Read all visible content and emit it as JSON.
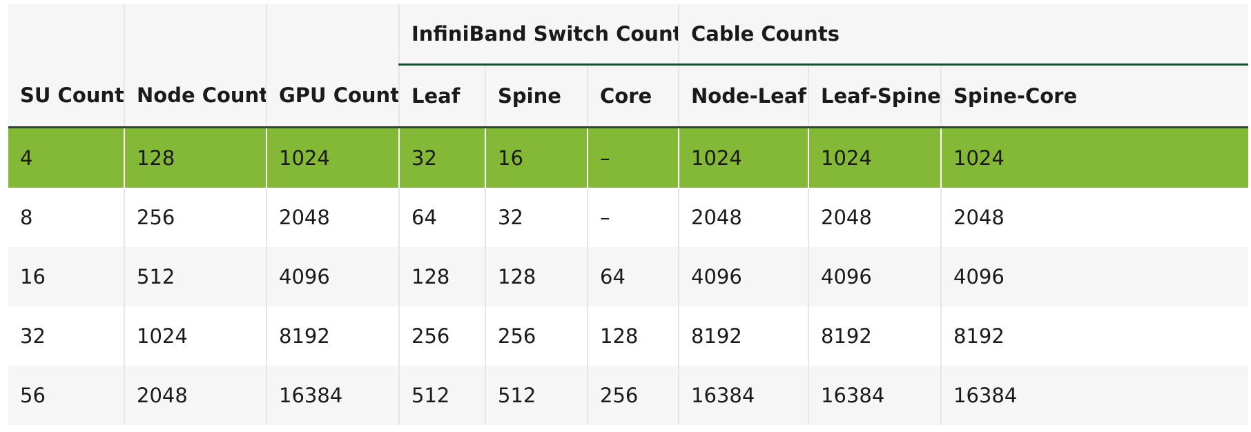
{
  "table": {
    "group_headers": {
      "switch_counts": "InfiniBand Switch Counts",
      "cable_counts": "Cable Counts"
    },
    "columns": [
      "SU Count",
      "Node Count",
      "GPU Count",
      "Leaf",
      "Spine",
      "Core",
      "Node-Leaf",
      "Leaf-Spine",
      "Spine-Core"
    ],
    "rows": [
      [
        "4",
        "128",
        "1024",
        "32",
        "16",
        "–",
        "1024",
        "1024",
        "1024"
      ],
      [
        "8",
        "256",
        "2048",
        "64",
        "32",
        "–",
        "2048",
        "2048",
        "2048"
      ],
      [
        "16",
        "512",
        "4096",
        "128",
        "128",
        "64",
        "4096",
        "4096",
        "4096"
      ],
      [
        "32",
        "1024",
        "8192",
        "256",
        "256",
        "128",
        "8192",
        "8192",
        "8192"
      ],
      [
        "56",
        "2048",
        "16384",
        "512",
        "512",
        "256",
        "16384",
        "16384",
        "16384"
      ]
    ],
    "highlighted_row_index": 0
  },
  "colors": {
    "highlight": "#84b938",
    "header_rule": "#1f4d2e",
    "header_bg": "#f6f6f6",
    "stripe_bg": "#f6f6f6"
  }
}
